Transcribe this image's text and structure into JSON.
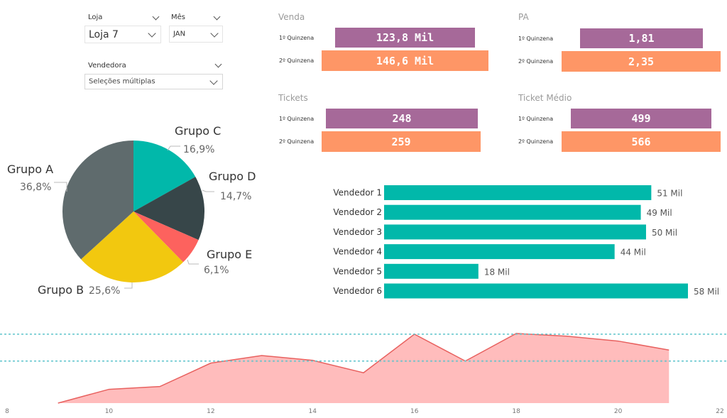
{
  "filters": {
    "loja": {
      "label": "Loja",
      "value": "Loja 7"
    },
    "mes": {
      "label": "Mês",
      "value": "JAN"
    },
    "vendedora": {
      "label": "Vendedora",
      "value": "Seleções múltiplas"
    }
  },
  "kpis": {
    "venda": {
      "title": "Venda",
      "rows": [
        {
          "label": "1º Quinzena",
          "value": "123,8 Mil"
        },
        {
          "label": "2º Quinzena",
          "value": "146,6 Mil"
        }
      ]
    },
    "pa": {
      "title": "PA",
      "rows": [
        {
          "label": "1º Quinzena",
          "value": "1,81"
        },
        {
          "label": "2º Quinzena",
          "value": "2,35"
        }
      ]
    },
    "tickets": {
      "title": "Tickets",
      "rows": [
        {
          "label": "1º Quinzena",
          "value": "248"
        },
        {
          "label": "2º Quinzena",
          "value": "259"
        }
      ]
    },
    "ticket_medio": {
      "title": "Ticket Médio",
      "rows": [
        {
          "label": "1º Quinzena",
          "value": "499"
        },
        {
          "label": "2º Quinzena",
          "value": "566"
        }
      ]
    }
  },
  "colors": {
    "purple": "#a66999",
    "orange": "#fe9666",
    "teal": "#01b8aa",
    "dark": "#374649",
    "grey": "#5f6b6d",
    "yellow": "#f2c80f",
    "red": "#fd625e",
    "area_line": "#e8615f",
    "area_fill": "#ffbcbc",
    "ref_line": "#5ec4cc"
  },
  "chart_data": [
    {
      "type": "pie",
      "labels": [
        "Grupo A",
        "Grupo B",
        "Grupo C",
        "Grupo D",
        "Grupo E"
      ],
      "values": [
        36.8,
        25.6,
        16.9,
        14.7,
        6.1
      ],
      "value_labels": [
        "36,8%",
        "25,6%",
        "16,9%",
        "14,7%",
        "6,1%"
      ],
      "colors": [
        "#5f6b6d",
        "#f2c80f",
        "#01b8aa",
        "#374649",
        "#fd625e"
      ]
    },
    {
      "type": "bar",
      "orientation": "horizontal",
      "categories": [
        "Vendedor 1",
        "Vendedor 2",
        "Vendedor 3",
        "Vendedor 4",
        "Vendedor 5",
        "Vendedor 6"
      ],
      "values": [
        51,
        49,
        50,
        44,
        18,
        58
      ],
      "value_labels": [
        "51 Mil",
        "49 Mil",
        "50 Mil",
        "44 Mil",
        "18 Mil",
        "58 Mil"
      ],
      "color": "#01b8aa"
    },
    {
      "type": "area",
      "x": [
        9,
        10,
        11,
        12,
        13,
        14,
        15,
        16,
        17,
        18,
        19,
        20,
        21
      ],
      "values": [
        0,
        20,
        24,
        58,
        69,
        62,
        44,
        100,
        61,
        101,
        97,
        90,
        77
      ],
      "xlim": [
        8,
        22
      ],
      "ylim": [
        0,
        105
      ],
      "xticks": [
        "8",
        "10",
        "12",
        "14",
        "16",
        "18",
        "20",
        "22"
      ],
      "reference_lines": [
        100,
        61
      ],
      "grid": false
    }
  ]
}
